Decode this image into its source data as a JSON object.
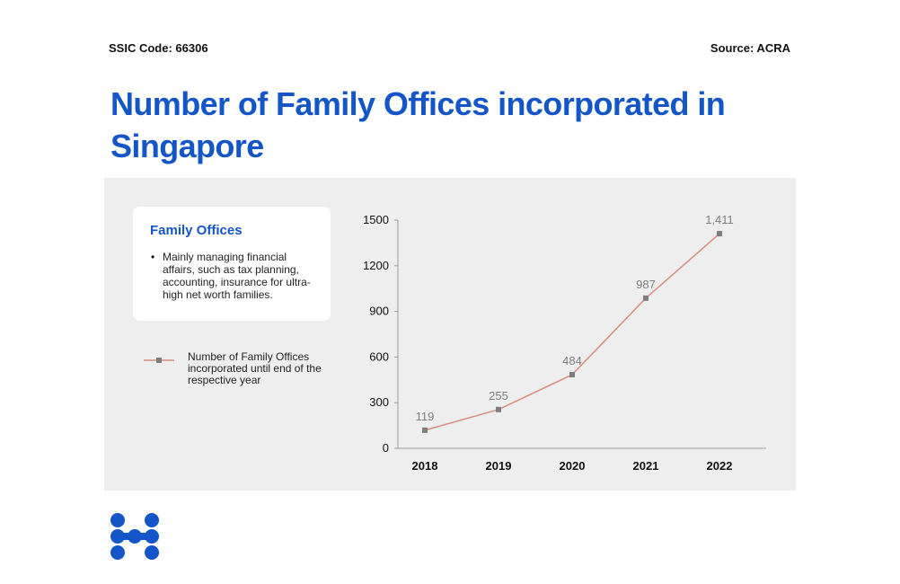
{
  "header": {
    "ssic_code": "SSIC Code: 66306",
    "source": "Source: ACRA",
    "title": "Number of Family Offices incorporated in Singapore"
  },
  "card": {
    "title": "Family Offices",
    "bullets": [
      "Mainly managing financial affairs, such as tax planning, accounting, insurance for ultra-high net worth families."
    ]
  },
  "legend": {
    "label": "Number of Family Offices incorporated until end of the respective year"
  },
  "colors": {
    "brand_blue": "#1456c8",
    "line": "#d88d7a",
    "marker": "#7d7d7d",
    "panel_bg": "#eeeeee"
  },
  "chart_data": {
    "type": "line",
    "title": "Number of Family Offices incorporated in Singapore",
    "xlabel": "",
    "ylabel": "",
    "categories": [
      "2018",
      "2019",
      "2020",
      "2021",
      "2022"
    ],
    "series": [
      {
        "name": "Number of Family Offices incorporated until end of the respective year",
        "values": [
          119,
          255,
          484,
          987,
          1411
        ],
        "labels": [
          "119",
          "255",
          "484",
          "987",
          "1,411"
        ]
      }
    ],
    "y_ticks": [
      "0",
      "300",
      "600",
      "900",
      "1200",
      "1500"
    ],
    "y_tick_values": [
      0,
      300,
      600,
      900,
      1200,
      1500
    ],
    "ylim": [
      0,
      1500
    ],
    "grid": false,
    "legend_position": "left"
  }
}
